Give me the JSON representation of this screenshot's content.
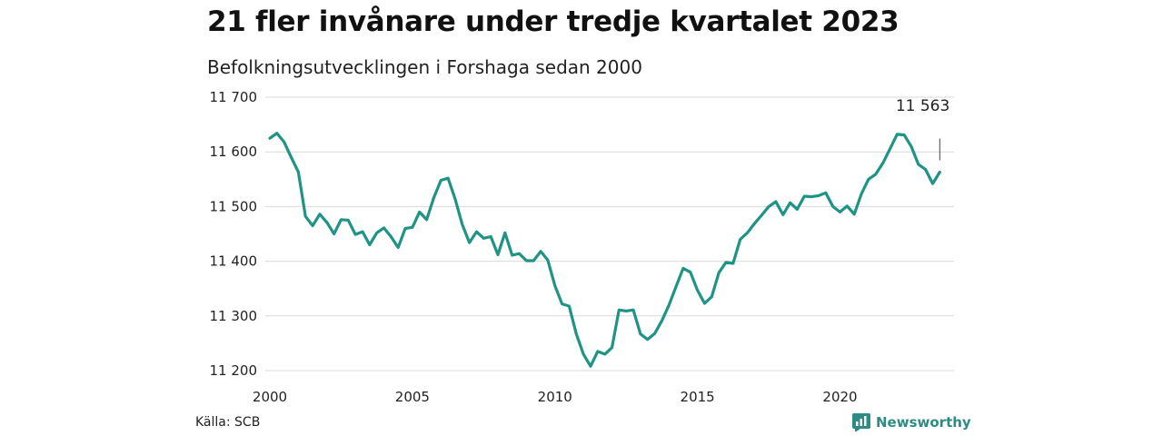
{
  "header": {
    "title": "21 fler invånare under tredje kvartalet 2023",
    "subtitle": "Befolkningsutvecklingen i Forshaga sedan 2000"
  },
  "footer": {
    "source": "Källa: SCB",
    "brand": "Newsworthy"
  },
  "colors": {
    "line": "#1f9485",
    "grid": "#d9d9d9",
    "brand": "#2e8b83"
  },
  "chart_data": {
    "type": "line",
    "title": "21 fler invånare under tredje kvartalet 2023",
    "subtitle": "Befolkningsutvecklingen i Forshaga sedan 2000",
    "xlabel": "",
    "ylabel": "",
    "xlim": [
      2000,
      2024
    ],
    "ylim": [
      11200,
      11700
    ],
    "x_ticks": [
      2000,
      2005,
      2010,
      2015,
      2020
    ],
    "x_tick_labels": [
      "2000",
      "2005",
      "2010",
      "2015",
      "2020"
    ],
    "y_ticks": [
      11200,
      11300,
      11400,
      11500,
      11600,
      11700
    ],
    "y_tick_labels": [
      "11 200",
      "11 300",
      "11 400",
      "11 500",
      "11 600",
      "11 700"
    ],
    "grid": "horizontal",
    "last_value_label": "11 563",
    "series": [
      {
        "x": [
          2000.0,
          2000.25,
          2000.5,
          2000.75,
          2001.0,
          2001.25,
          2001.5,
          2001.75,
          2002.0,
          2002.25,
          2002.5,
          2002.75,
          2003.0,
          2003.25,
          2003.5,
          2003.75,
          2004.0,
          2004.25,
          2004.5,
          2004.75,
          2005.0,
          2005.25,
          2005.5,
          2005.75,
          2006.0,
          2006.25,
          2006.5,
          2006.75,
          2007.0,
          2007.25,
          2007.5,
          2007.75,
          2008.0,
          2008.25,
          2008.5,
          2008.75,
          2009.0,
          2009.25,
          2009.5,
          2009.75,
          2010.0,
          2010.25,
          2010.5,
          2010.75,
          2011.0,
          2011.25,
          2011.5,
          2011.75,
          2012.0,
          2012.25,
          2012.5,
          2012.75,
          2013.0,
          2013.25,
          2013.5,
          2013.75,
          2014.0,
          2014.25,
          2014.5,
          2014.75,
          2015.0,
          2015.25,
          2015.5,
          2015.75,
          2016.0,
          2016.25,
          2016.5,
          2016.75,
          2017.0,
          2017.25,
          2017.5,
          2017.75,
          2018.0,
          2018.25,
          2018.5,
          2018.75,
          2019.0,
          2019.25,
          2019.5,
          2019.75,
          2020.0,
          2020.25,
          2020.5,
          2020.75,
          2021.0,
          2021.25,
          2021.5,
          2021.75,
          2022.0,
          2022.25,
          2022.5,
          2022.75,
          2023.0,
          2023.25,
          2023.5
        ],
        "values": [
          11625,
          11634,
          11618,
          11590,
          11563,
          11482,
          11465,
          11486,
          11471,
          11450,
          11476,
          11475,
          11449,
          11454,
          11430,
          11452,
          11461,
          11445,
          11425,
          11460,
          11462,
          11490,
          11476,
          11516,
          11548,
          11552,
          11514,
          11467,
          11434,
          11454,
          11442,
          11445,
          11412,
          11452,
          11411,
          11414,
          11401,
          11401,
          11418,
          11402,
          11355,
          11322,
          11318,
          11267,
          11230,
          11208,
          11235,
          11230,
          11242,
          11311,
          11309,
          11311,
          11267,
          11257,
          11268,
          11291,
          11320,
          11354,
          11387,
          11380,
          11347,
          11323,
          11335,
          11379,
          11398,
          11396,
          11440,
          11452,
          11469,
          11484,
          11500,
          11509,
          11485,
          11507,
          11495,
          11519,
          11518,
          11520,
          11525,
          11500,
          11490,
          11501,
          11486,
          11523,
          11550,
          11559,
          11579,
          11605,
          11632,
          11631,
          11610,
          11577,
          11568,
          11542,
          11563
        ]
      }
    ]
  }
}
